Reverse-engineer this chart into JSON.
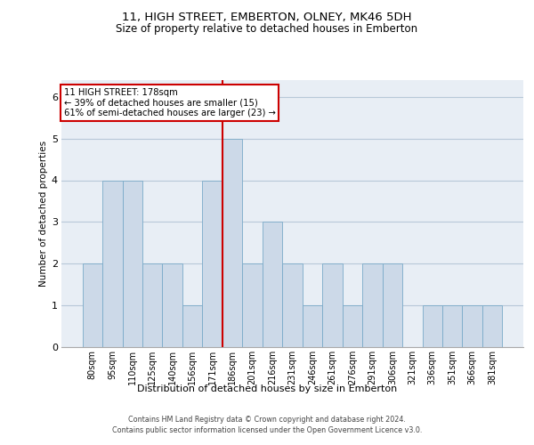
{
  "title1": "11, HIGH STREET, EMBERTON, OLNEY, MK46 5DH",
  "title2": "Size of property relative to detached houses in Emberton",
  "xlabel": "Distribution of detached houses by size in Emberton",
  "ylabel": "Number of detached properties",
  "categories": [
    "80sqm",
    "95sqm",
    "110sqm",
    "125sqm",
    "140sqm",
    "156sqm",
    "171sqm",
    "186sqm",
    "201sqm",
    "216sqm",
    "231sqm",
    "246sqm",
    "261sqm",
    "276sqm",
    "291sqm",
    "306sqm",
    "321sqm",
    "336sqm",
    "351sqm",
    "366sqm",
    "381sqm"
  ],
  "values": [
    2,
    4,
    4,
    2,
    2,
    1,
    4,
    5,
    2,
    3,
    2,
    1,
    2,
    1,
    2,
    2,
    0,
    1,
    1,
    1,
    1
  ],
  "bar_color": "#ccd9e8",
  "bar_edge_color": "#7aaac8",
  "redline_bar_index": 7,
  "redline_color": "#cc0000",
  "annotation_text": "11 HIGH STREET: 178sqm\n← 39% of detached houses are smaller (15)\n61% of semi-detached houses are larger (23) →",
  "annotation_box_facecolor": "white",
  "annotation_box_edgecolor": "#cc0000",
  "ylim": [
    0,
    6.4
  ],
  "yticks": [
    0,
    1,
    2,
    3,
    4,
    5,
    6
  ],
  "footer1": "Contains HM Land Registry data © Crown copyright and database right 2024.",
  "footer2": "Contains public sector information licensed under the Open Government Licence v3.0.",
  "bg_color": "#e8eef5",
  "grid_color": "#b8c8d8",
  "title1_fontsize": 9.5,
  "title2_fontsize": 8.5,
  "ylabel_fontsize": 7.5,
  "xlabel_fontsize": 8.0,
  "tick_fontsize": 7.0,
  "ytick_fontsize": 8.0,
  "footer_fontsize": 5.8,
  "annot_fontsize": 7.2
}
